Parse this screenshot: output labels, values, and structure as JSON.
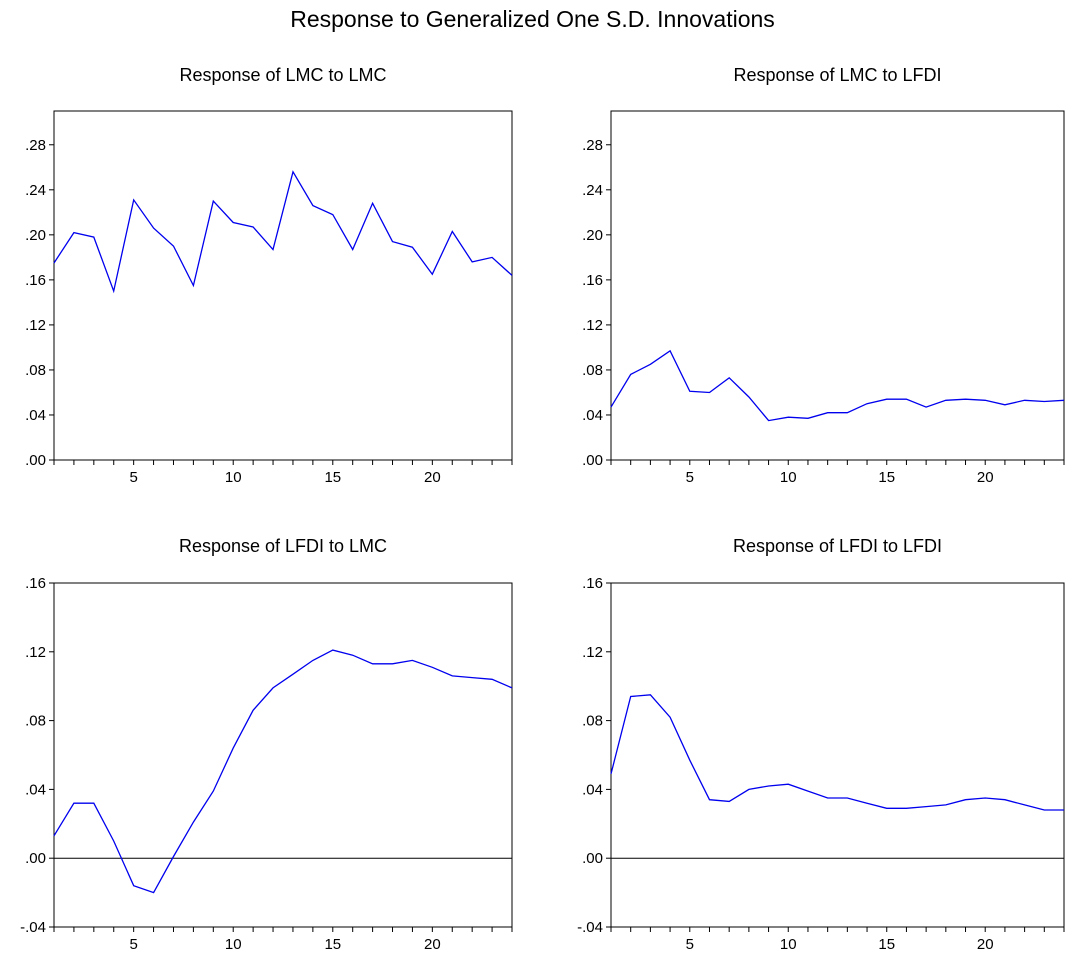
{
  "title": "Response to Generalized One S.D. Innovations",
  "chart_data": [
    {
      "type": "line",
      "title": "Response of LMC to LMC",
      "x": [
        1,
        2,
        3,
        4,
        5,
        6,
        7,
        8,
        9,
        10,
        11,
        12,
        13,
        14,
        15,
        16,
        17,
        18,
        19,
        20,
        21,
        22,
        23,
        24
      ],
      "series": [
        {
          "values": [
            0.175,
            0.202,
            0.198,
            0.15,
            0.231,
            0.206,
            0.19,
            0.155,
            0.23,
            0.211,
            0.207,
            0.187,
            0.256,
            0.226,
            0.218,
            0.187,
            0.228,
            0.194,
            0.189,
            0.165,
            0.203,
            0.176,
            0.18,
            0.164
          ]
        }
      ],
      "ylim": [
        0.0,
        0.31
      ],
      "yticks": [
        ".00",
        ".04",
        ".08",
        ".12",
        ".16",
        ".20",
        ".24",
        ".28"
      ],
      "yticks_values": [
        0.0,
        0.04,
        0.08,
        0.12,
        0.16,
        0.2,
        0.24,
        0.28
      ],
      "xticks": [
        "5",
        "10",
        "15",
        "20"
      ],
      "xticks_values": [
        5,
        10,
        15,
        20
      ],
      "xlim": [
        1,
        24
      ],
      "zero_line": false,
      "color": "#0000ee"
    },
    {
      "type": "line",
      "title": "Response of LMC to LFDI",
      "x": [
        1,
        2,
        3,
        4,
        5,
        6,
        7,
        8,
        9,
        10,
        11,
        12,
        13,
        14,
        15,
        16,
        17,
        18,
        19,
        20,
        21,
        22,
        23,
        24
      ],
      "series": [
        {
          "values": [
            0.047,
            0.076,
            0.085,
            0.097,
            0.061,
            0.06,
            0.073,
            0.056,
            0.035,
            0.038,
            0.037,
            0.042,
            0.042,
            0.05,
            0.054,
            0.054,
            0.047,
            0.053,
            0.054,
            0.053,
            0.049,
            0.053,
            0.052,
            0.053
          ]
        }
      ],
      "ylim": [
        0.0,
        0.31
      ],
      "yticks": [
        ".00",
        ".04",
        ".08",
        ".12",
        ".16",
        ".20",
        ".24",
        ".28"
      ],
      "yticks_values": [
        0.0,
        0.04,
        0.08,
        0.12,
        0.16,
        0.2,
        0.24,
        0.28
      ],
      "xticks": [
        "5",
        "10",
        "15",
        "20"
      ],
      "xticks_values": [
        5,
        10,
        15,
        20
      ],
      "xlim": [
        1,
        24
      ],
      "zero_line": false,
      "color": "#0000ee"
    },
    {
      "type": "line",
      "title": "Response of LFDI to LMC",
      "x": [
        1,
        2,
        3,
        4,
        5,
        6,
        7,
        8,
        9,
        10,
        11,
        12,
        13,
        14,
        15,
        16,
        17,
        18,
        19,
        20,
        21,
        22,
        23,
        24
      ],
      "series": [
        {
          "values": [
            0.013,
            0.032,
            0.032,
            0.01,
            -0.016,
            -0.02,
            0.001,
            0.021,
            0.039,
            0.064,
            0.086,
            0.099,
            0.107,
            0.115,
            0.121,
            0.118,
            0.113,
            0.113,
            0.115,
            0.111,
            0.106,
            0.105,
            0.104,
            0.099
          ]
        }
      ],
      "ylim": [
        -0.04,
        0.16
      ],
      "yticks": [
        "-.04",
        ".00",
        ".04",
        ".08",
        ".12",
        ".16"
      ],
      "yticks_values": [
        -0.04,
        0.0,
        0.04,
        0.08,
        0.12,
        0.16
      ],
      "xticks": [
        "5",
        "10",
        "15",
        "20"
      ],
      "xticks_values": [
        5,
        10,
        15,
        20
      ],
      "xlim": [
        1,
        24
      ],
      "zero_line": true,
      "color": "#0000ee"
    },
    {
      "type": "line",
      "title": "Response of LFDI to LFDI",
      "x": [
        1,
        2,
        3,
        4,
        5,
        6,
        7,
        8,
        9,
        10,
        11,
        12,
        13,
        14,
        15,
        16,
        17,
        18,
        19,
        20,
        21,
        22,
        23,
        24
      ],
      "series": [
        {
          "values": [
            0.049,
            0.094,
            0.095,
            0.082,
            0.057,
            0.034,
            0.033,
            0.04,
            0.042,
            0.043,
            0.039,
            0.035,
            0.035,
            0.032,
            0.029,
            0.029,
            0.03,
            0.031,
            0.034,
            0.035,
            0.034,
            0.031,
            0.028,
            0.028
          ]
        }
      ],
      "ylim": [
        -0.04,
        0.16
      ],
      "yticks": [
        "-.04",
        ".00",
        ".04",
        ".08",
        ".12",
        ".16"
      ],
      "yticks_values": [
        -0.04,
        0.0,
        0.04,
        0.08,
        0.12,
        0.16
      ],
      "xticks": [
        "5",
        "10",
        "15",
        "20"
      ],
      "xticks_values": [
        5,
        10,
        15,
        20
      ],
      "xlim": [
        1,
        24
      ],
      "zero_line": true,
      "color": "#0000ee"
    }
  ]
}
